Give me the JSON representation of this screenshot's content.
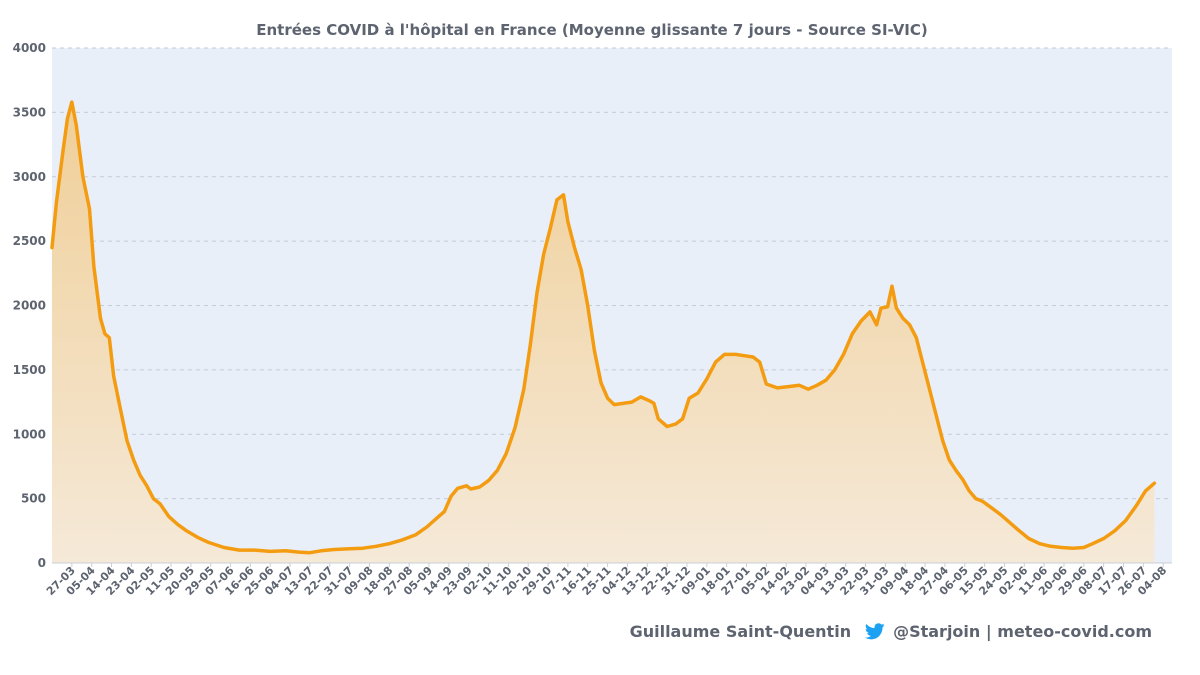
{
  "chart_data": {
    "type": "area",
    "title": "Entrées COVID à l'hôpital en France (Moyenne glissante 7 jours - Source SI-VIC)",
    "xlabel": "",
    "ylabel": "",
    "ylim": [
      0,
      4000
    ],
    "yticks": [
      0,
      500,
      1000,
      1500,
      2000,
      2500,
      3000,
      3500,
      4000
    ],
    "grid": true,
    "legend": "none",
    "x_start": "2020-03-18",
    "x_end": "2021-08-08",
    "xtick_labels": [
      {
        "date": "2020-03-27",
        "label": "27-03"
      },
      {
        "date": "2020-04-05",
        "label": "05-04"
      },
      {
        "date": "2020-04-14",
        "label": "14-04"
      },
      {
        "date": "2020-04-23",
        "label": "23-04"
      },
      {
        "date": "2020-05-02",
        "label": "02-05"
      },
      {
        "date": "2020-05-11",
        "label": "11-05"
      },
      {
        "date": "2020-05-20",
        "label": "20-05"
      },
      {
        "date": "2020-05-29",
        "label": "29-05"
      },
      {
        "date": "2020-06-07",
        "label": "07-06"
      },
      {
        "date": "2020-06-16",
        "label": "16-06"
      },
      {
        "date": "2020-06-25",
        "label": "25-06"
      },
      {
        "date": "2020-07-04",
        "label": "04-07"
      },
      {
        "date": "2020-07-13",
        "label": "13-07"
      },
      {
        "date": "2020-07-22",
        "label": "22-07"
      },
      {
        "date": "2020-07-31",
        "label": "31-07"
      },
      {
        "date": "2020-08-09",
        "label": "09-08"
      },
      {
        "date": "2020-08-18",
        "label": "18-08"
      },
      {
        "date": "2020-08-27",
        "label": "27-08"
      },
      {
        "date": "2020-09-05",
        "label": "05-09"
      },
      {
        "date": "2020-09-14",
        "label": "14-09"
      },
      {
        "date": "2020-09-23",
        "label": "23-09"
      },
      {
        "date": "2020-10-02",
        "label": "02-10"
      },
      {
        "date": "2020-10-11",
        "label": "11-10"
      },
      {
        "date": "2020-10-20",
        "label": "20-10"
      },
      {
        "date": "2020-10-29",
        "label": "29-10"
      },
      {
        "date": "2020-11-07",
        "label": "07-11"
      },
      {
        "date": "2020-11-16",
        "label": "16-11"
      },
      {
        "date": "2020-11-25",
        "label": "25-11"
      },
      {
        "date": "2020-12-04",
        "label": "04-12"
      },
      {
        "date": "2020-12-13",
        "label": "13-12"
      },
      {
        "date": "2020-12-22",
        "label": "22-12"
      },
      {
        "date": "2020-12-31",
        "label": "31-12"
      },
      {
        "date": "2021-01-09",
        "label": "09-01"
      },
      {
        "date": "2021-01-18",
        "label": "18-01"
      },
      {
        "date": "2021-01-27",
        "label": "27-01"
      },
      {
        "date": "2021-02-05",
        "label": "05-02"
      },
      {
        "date": "2021-02-14",
        "label": "14-02"
      },
      {
        "date": "2021-02-23",
        "label": "23-02"
      },
      {
        "date": "2021-03-04",
        "label": "04-03"
      },
      {
        "date": "2021-03-13",
        "label": "13-03"
      },
      {
        "date": "2021-03-22",
        "label": "22-03"
      },
      {
        "date": "2021-03-31",
        "label": "31-03"
      },
      {
        "date": "2021-04-09",
        "label": "09-04"
      },
      {
        "date": "2021-04-18",
        "label": "18-04"
      },
      {
        "date": "2021-04-27",
        "label": "27-04"
      },
      {
        "date": "2021-05-06",
        "label": "06-05"
      },
      {
        "date": "2021-05-15",
        "label": "15-05"
      },
      {
        "date": "2021-05-24",
        "label": "24-05"
      },
      {
        "date": "2021-06-02",
        "label": "02-06"
      },
      {
        "date": "2021-06-11",
        "label": "11-06"
      },
      {
        "date": "2021-06-20",
        "label": "20-06"
      },
      {
        "date": "2021-06-29",
        "label": "29-06"
      },
      {
        "date": "2021-07-08",
        "label": "08-07"
      },
      {
        "date": "2021-07-17",
        "label": "17-07"
      },
      {
        "date": "2021-07-26",
        "label": "26-07"
      },
      {
        "date": "2021-08-04",
        "label": "04-08"
      }
    ],
    "series": [
      {
        "name": "",
        "color": "#f39c12",
        "fill_top": "#f0cf98",
        "fill_bottom": "#f5e9d8",
        "points": [
          [
            "2020-03-18",
            2450
          ],
          [
            "2020-03-20",
            2800
          ],
          [
            "2020-03-23",
            3200
          ],
          [
            "2020-03-25",
            3450
          ],
          [
            "2020-03-27",
            3580
          ],
          [
            "2020-03-29",
            3400
          ],
          [
            "2020-04-01",
            3000
          ],
          [
            "2020-04-04",
            2750
          ],
          [
            "2020-04-06",
            2300
          ],
          [
            "2020-04-09",
            1900
          ],
          [
            "2020-04-11",
            1780
          ],
          [
            "2020-04-13",
            1750
          ],
          [
            "2020-04-15",
            1450
          ],
          [
            "2020-04-18",
            1200
          ],
          [
            "2020-04-21",
            950
          ],
          [
            "2020-04-24",
            800
          ],
          [
            "2020-04-27",
            680
          ],
          [
            "2020-04-30",
            600
          ],
          [
            "2020-05-03",
            500
          ],
          [
            "2020-05-06",
            460
          ],
          [
            "2020-05-10",
            360
          ],
          [
            "2020-05-14",
            300
          ],
          [
            "2020-05-18",
            250
          ],
          [
            "2020-05-23",
            200
          ],
          [
            "2020-05-28",
            160
          ],
          [
            "2020-06-04",
            120
          ],
          [
            "2020-06-11",
            100
          ],
          [
            "2020-06-18",
            100
          ],
          [
            "2020-06-25",
            90
          ],
          [
            "2020-07-02",
            95
          ],
          [
            "2020-07-08",
            85
          ],
          [
            "2020-07-13",
            80
          ],
          [
            "2020-07-18",
            95
          ],
          [
            "2020-07-24",
            105
          ],
          [
            "2020-07-31",
            110
          ],
          [
            "2020-08-06",
            115
          ],
          [
            "2020-08-12",
            130
          ],
          [
            "2020-08-18",
            150
          ],
          [
            "2020-08-24",
            180
          ],
          [
            "2020-08-30",
            220
          ],
          [
            "2020-09-04",
            280
          ],
          [
            "2020-09-08",
            340
          ],
          [
            "2020-09-12",
            400
          ],
          [
            "2020-09-15",
            520
          ],
          [
            "2020-09-18",
            580
          ],
          [
            "2020-09-22",
            600
          ],
          [
            "2020-09-24",
            575
          ],
          [
            "2020-09-28",
            590
          ],
          [
            "2020-10-02",
            640
          ],
          [
            "2020-10-06",
            720
          ],
          [
            "2020-10-10",
            850
          ],
          [
            "2020-10-14",
            1050
          ],
          [
            "2020-10-18",
            1350
          ],
          [
            "2020-10-21",
            1700
          ],
          [
            "2020-10-24",
            2100
          ],
          [
            "2020-10-27",
            2400
          ],
          [
            "2020-10-30",
            2600
          ],
          [
            "2020-11-02",
            2820
          ],
          [
            "2020-11-05",
            2860
          ],
          [
            "2020-11-07",
            2650
          ],
          [
            "2020-11-10",
            2450
          ],
          [
            "2020-11-13",
            2280
          ],
          [
            "2020-11-16",
            2000
          ],
          [
            "2020-11-19",
            1650
          ],
          [
            "2020-11-22",
            1400
          ],
          [
            "2020-11-25",
            1280
          ],
          [
            "2020-11-28",
            1230
          ],
          [
            "2020-12-02",
            1240
          ],
          [
            "2020-12-06",
            1250
          ],
          [
            "2020-12-10",
            1290
          ],
          [
            "2020-12-14",
            1260
          ],
          [
            "2020-12-16",
            1240
          ],
          [
            "2020-12-18",
            1120
          ],
          [
            "2020-12-22",
            1060
          ],
          [
            "2020-12-26",
            1080
          ],
          [
            "2020-12-29",
            1120
          ],
          [
            "2021-01-01",
            1280
          ],
          [
            "2021-01-05",
            1320
          ],
          [
            "2021-01-09",
            1430
          ],
          [
            "2021-01-13",
            1560
          ],
          [
            "2021-01-17",
            1620
          ],
          [
            "2021-01-22",
            1620
          ],
          [
            "2021-01-26",
            1610
          ],
          [
            "2021-01-30",
            1600
          ],
          [
            "2021-02-02",
            1560
          ],
          [
            "2021-02-05",
            1390
          ],
          [
            "2021-02-10",
            1360
          ],
          [
            "2021-02-15",
            1370
          ],
          [
            "2021-02-20",
            1380
          ],
          [
            "2021-02-24",
            1350
          ],
          [
            "2021-02-28",
            1380
          ],
          [
            "2021-03-04",
            1420
          ],
          [
            "2021-03-08",
            1500
          ],
          [
            "2021-03-12",
            1620
          ],
          [
            "2021-03-16",
            1780
          ],
          [
            "2021-03-20",
            1880
          ],
          [
            "2021-03-24",
            1950
          ],
          [
            "2021-03-27",
            1850
          ],
          [
            "2021-03-29",
            1980
          ],
          [
            "2021-04-01",
            1990
          ],
          [
            "2021-04-03",
            2150
          ],
          [
            "2021-04-05",
            1980
          ],
          [
            "2021-04-08",
            1900
          ],
          [
            "2021-04-11",
            1850
          ],
          [
            "2021-04-14",
            1750
          ],
          [
            "2021-04-17",
            1550
          ],
          [
            "2021-04-20",
            1350
          ],
          [
            "2021-04-23",
            1150
          ],
          [
            "2021-04-26",
            950
          ],
          [
            "2021-04-29",
            800
          ],
          [
            "2021-05-02",
            720
          ],
          [
            "2021-05-05",
            650
          ],
          [
            "2021-05-08",
            560
          ],
          [
            "2021-05-11",
            500
          ],
          [
            "2021-05-14",
            480
          ],
          [
            "2021-05-18",
            430
          ],
          [
            "2021-05-22",
            380
          ],
          [
            "2021-05-26",
            320
          ],
          [
            "2021-05-30",
            260
          ],
          [
            "2021-06-04",
            190
          ],
          [
            "2021-06-09",
            150
          ],
          [
            "2021-06-14",
            130
          ],
          [
            "2021-06-19",
            120
          ],
          [
            "2021-06-24",
            115
          ],
          [
            "2021-06-29",
            120
          ],
          [
            "2021-07-03",
            150
          ],
          [
            "2021-07-08",
            190
          ],
          [
            "2021-07-13",
            250
          ],
          [
            "2021-07-18",
            330
          ],
          [
            "2021-07-23",
            450
          ],
          [
            "2021-07-27",
            560
          ],
          [
            "2021-07-31",
            620
          ]
        ]
      }
    ]
  },
  "footer": {
    "author": "Guillaume Saint-Quentin",
    "twitter_icon": "twitter-bird-icon",
    "twitter_color": "#1da1f2",
    "handle": "@Starjoin | meteo-covid.com"
  }
}
